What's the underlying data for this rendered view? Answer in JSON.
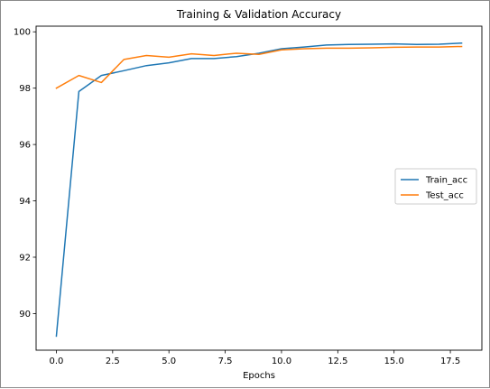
{
  "chart_data": {
    "type": "line",
    "title": "Training & Validation Accuracy",
    "xlabel": "Epochs",
    "ylabel": "",
    "xlim": [
      -0.9,
      18.9
    ],
    "ylim": [
      88.7,
      100.2
    ],
    "xticks": [
      0.0,
      2.5,
      5.0,
      7.5,
      10.0,
      12.5,
      15.0,
      17.5
    ],
    "xtick_labels": [
      "0.0",
      "2.5",
      "5.0",
      "7.5",
      "10.0",
      "12.5",
      "15.0",
      "17.5"
    ],
    "yticks": [
      90,
      92,
      94,
      96,
      98,
      100
    ],
    "ytick_labels": [
      "90",
      "92",
      "94",
      "96",
      "98",
      "100"
    ],
    "grid": false,
    "legend_position": "center-right",
    "x": [
      0,
      1,
      2,
      3,
      4,
      5,
      6,
      7,
      8,
      9,
      10,
      11,
      12,
      13,
      14,
      15,
      16,
      17,
      18
    ],
    "series": [
      {
        "name": "Train_acc",
        "color": "#1f77b4",
        "values": [
          89.2,
          97.88,
          98.45,
          98.62,
          98.8,
          98.9,
          99.05,
          99.05,
          99.12,
          99.24,
          99.4,
          99.46,
          99.53,
          99.55,
          99.56,
          99.57,
          99.55,
          99.56,
          99.6
        ]
      },
      {
        "name": "Test_acc",
        "color": "#ff7f0e",
        "values": [
          98.0,
          98.45,
          98.2,
          99.02,
          99.16,
          99.1,
          99.22,
          99.16,
          99.24,
          99.2,
          99.36,
          99.4,
          99.42,
          99.42,
          99.43,
          99.45,
          99.46,
          99.46,
          99.48
        ]
      }
    ]
  }
}
